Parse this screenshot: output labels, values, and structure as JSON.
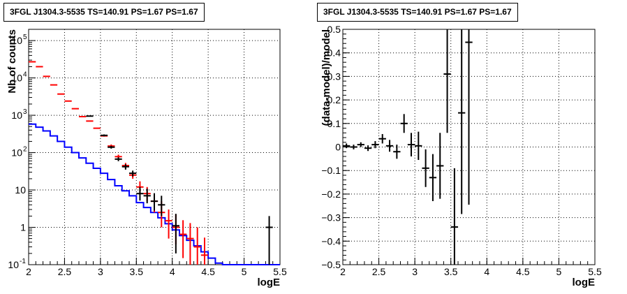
{
  "chart_data": [
    {
      "type": "histogram",
      "title": "3FGL J1304.3-5535 TS=140.91 PS=1.67 PS=1.67",
      "xlabel": "logE",
      "ylabel": "Nb of counts",
      "xlim": [
        2,
        5.5
      ],
      "ylim": [
        0.1,
        200000
      ],
      "ylog": true,
      "grid": true,
      "x_ticks": [
        "2",
        "2.5",
        "3",
        "3.5",
        "4",
        "4.5",
        "5",
        "5.5"
      ],
      "y_ticks": [
        {
          "value": 0.1,
          "label": "10",
          "exp": "-1"
        },
        {
          "value": 1,
          "label": "1",
          "exp": ""
        },
        {
          "value": 10,
          "label": "10",
          "exp": ""
        },
        {
          "value": 100,
          "label": "10",
          "exp": "2"
        },
        {
          "value": 1000,
          "label": "10",
          "exp": "3"
        },
        {
          "value": 10000,
          "label": "10",
          "exp": "4"
        },
        {
          "value": 100000,
          "label": "10",
          "exp": "5"
        }
      ],
      "series": [
        {
          "color": "#0000ff",
          "style": "step",
          "bin_edges": [
            2.0,
            2.1,
            2.2,
            2.3,
            2.4,
            2.5,
            2.6,
            2.7,
            2.8,
            2.9,
            3.0,
            3.1,
            3.2,
            3.3,
            3.4,
            3.5,
            3.6,
            3.7,
            3.8,
            3.9,
            4.0,
            4.1,
            4.2,
            4.3,
            4.4,
            4.5,
            4.6,
            4.7,
            4.8,
            4.9,
            5.0,
            5.1,
            5.2,
            5.3,
            5.4,
            5.5
          ],
          "values": [
            580,
            480,
            380,
            280,
            200,
            140,
            100,
            72,
            52,
            38,
            28,
            19,
            13,
            9.5,
            7,
            4.6,
            3.4,
            2.5,
            1.8,
            1.25,
            0.85,
            0.6,
            0.45,
            0.32,
            0.22,
            0.15,
            0.11,
            0.1,
            0.1,
            0.1,
            0.1,
            0.1,
            0.1,
            0.1,
            0.1
          ]
        },
        {
          "color": "#ff0000",
          "style": "errorbar",
          "x": [
            2.05,
            2.15,
            2.25,
            2.35,
            2.45,
            2.55,
            2.65,
            2.75,
            2.85,
            2.95,
            3.05,
            3.15,
            3.25,
            3.35,
            3.45,
            3.55,
            3.65,
            3.75,
            3.85,
            3.95,
            4.05,
            4.15,
            4.25,
            4.35,
            4.45
          ],
          "y": [
            27000,
            20000,
            11000,
            6500,
            3700,
            2400,
            1500,
            920,
            700,
            450,
            280,
            150,
            78,
            45,
            25,
            12,
            8,
            5,
            2.5,
            1.5,
            1,
            0.65,
            0.5,
            0.3,
            0.18
          ],
          "yerr_low": [
            0,
            0,
            0,
            0,
            0,
            0,
            0,
            0,
            0,
            0,
            0,
            15,
            10,
            8,
            5,
            4,
            3,
            2.5,
            1.5,
            1,
            0.65,
            0.5,
            0.4,
            0.25,
            0.15
          ],
          "yerr_high": [
            0,
            0,
            0,
            0,
            0,
            0,
            0,
            0,
            0,
            0,
            0,
            15,
            10,
            8,
            5,
            5,
            4,
            3,
            2.5,
            1.5,
            1.2,
            0.9,
            0.8,
            0.7,
            0.35
          ]
        },
        {
          "color": "#000000",
          "style": "errorbar",
          "x": [
            2.85,
            3.05,
            3.15,
            3.25,
            3.35,
            3.45,
            3.55,
            3.65,
            3.75,
            3.85,
            4.05,
            5.35
          ],
          "y": [
            950,
            290,
            140,
            67,
            42,
            28,
            8,
            7,
            5,
            4,
            1.1,
            1
          ],
          "yerr_low": [
            30,
            17,
            12,
            8,
            7,
            5,
            2.8,
            2.6,
            2.2,
            2,
            0.9,
            0.9
          ],
          "yerr_high": [
            30,
            17,
            12,
            8,
            7,
            5,
            4,
            3.8,
            3.2,
            3,
            1.2,
            1
          ]
        }
      ]
    },
    {
      "type": "scatter",
      "title": "3FGL J1304.3-5535 TS=140.91 PS=1.67 PS=1.67",
      "xlabel": "logE",
      "ylabel": "(data-model)/model",
      "xlim": [
        2,
        5.5
      ],
      "ylim": [
        -0.5,
        0.5
      ],
      "grid": true,
      "x_ticks": [
        "2",
        "2.5",
        "3",
        "3.5",
        "4",
        "4.5",
        "5",
        "5.5"
      ],
      "y_ticks": [
        "-0.5",
        "-0.4",
        "-0.3",
        "-0.2",
        "-0.1",
        "0",
        "0.1",
        "0.2",
        "0.3",
        "0.4",
        "0.5"
      ],
      "series": [
        {
          "color": "#000000",
          "style": "errorbar",
          "x": [
            2.05,
            2.15,
            2.25,
            2.35,
            2.45,
            2.55,
            2.65,
            2.75,
            2.85,
            2.95,
            3.05,
            3.15,
            3.25,
            3.35,
            3.45,
            3.55,
            3.65,
            3.75
          ],
          "y": [
            0.005,
            0.0,
            0.01,
            -0.005,
            0.01,
            0.035,
            0.005,
            -0.02,
            0.1,
            0.01,
            0.005,
            -0.09,
            -0.13,
            -0.08,
            0.31,
            -0.34,
            0.145,
            0.445
          ],
          "yerr": [
            0.01,
            0.01,
            0.01,
            0.012,
            0.015,
            0.02,
            0.025,
            0.03,
            0.04,
            0.05,
            0.06,
            0.08,
            0.1,
            0.14,
            0.25,
            0.25,
            0.43,
            0.69
          ]
        }
      ]
    }
  ]
}
